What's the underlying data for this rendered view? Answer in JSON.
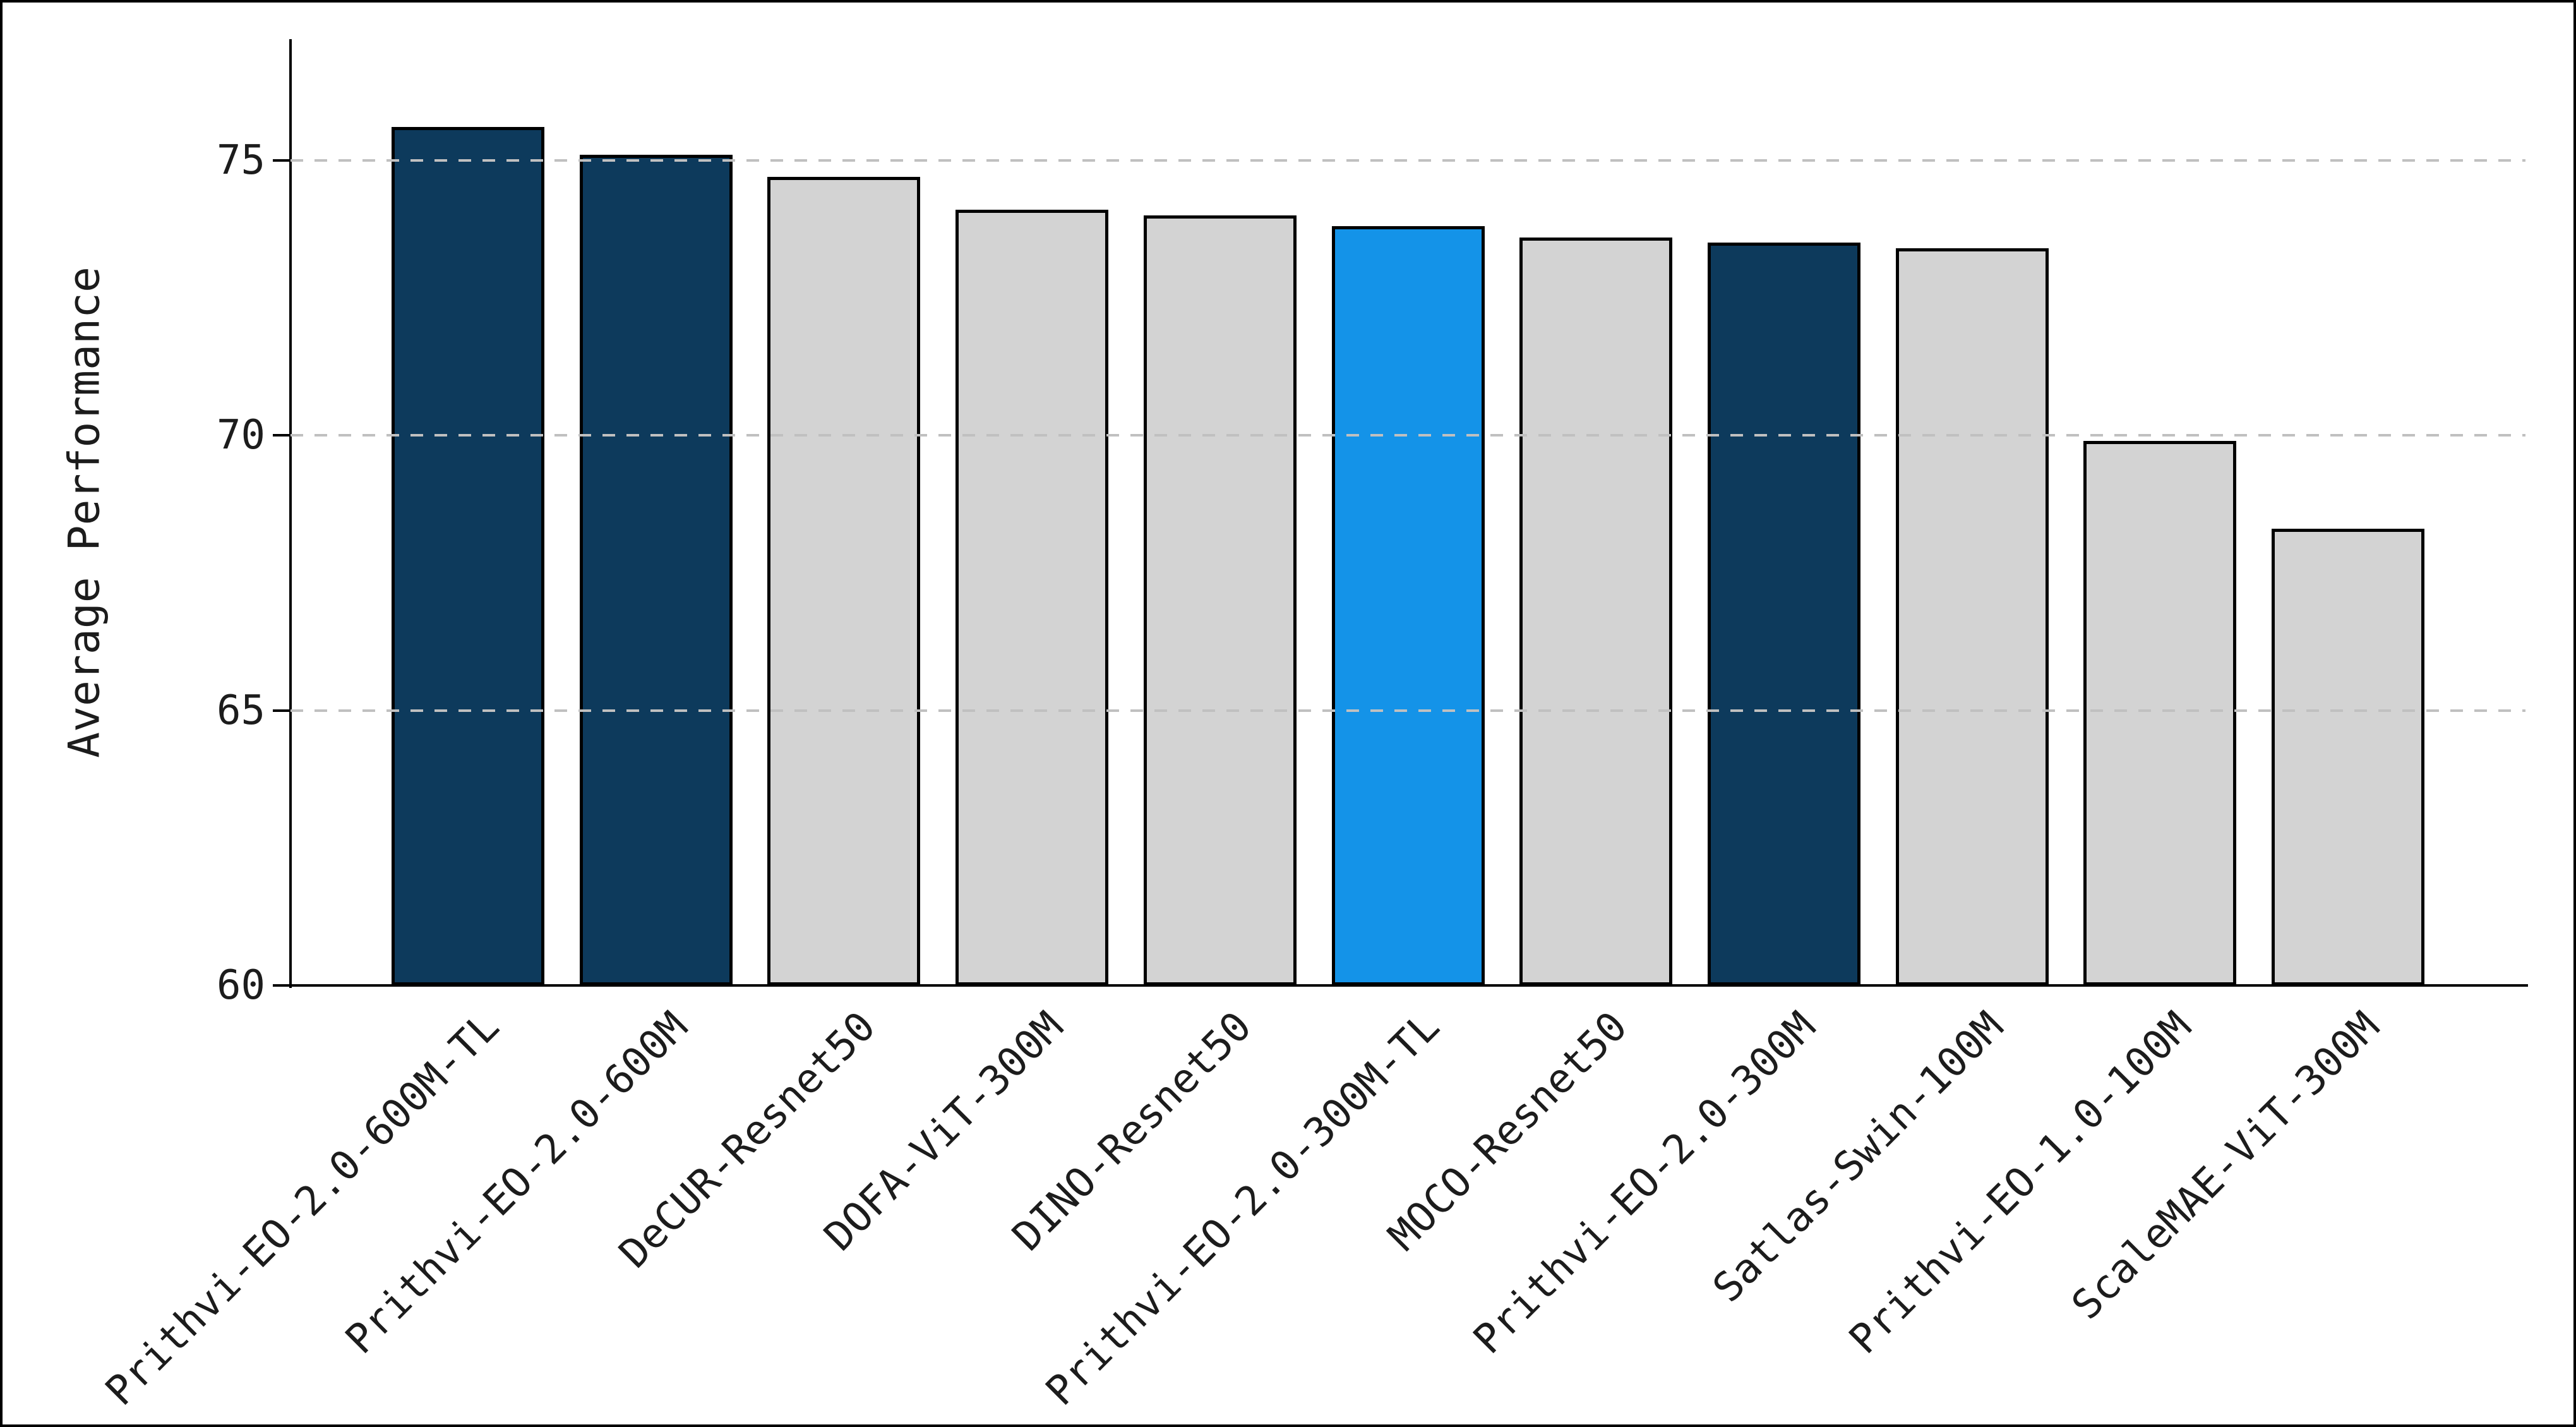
{
  "figure": {
    "background": "#ffffff",
    "border_color": "#000000"
  },
  "chart_data": {
    "type": "bar",
    "title": "",
    "xlabel": "",
    "ylabel": "Average Performance",
    "categories": [
      "Prithvi-EO-2.0-600M-TL",
      "Prithvi-EO-2.0-600M",
      "DeCUR-Resnet50",
      "DOFA-ViT-300M",
      "DINO-Resnet50",
      "Prithvi-EO-2.0-300M-TL",
      "MOCO-Resnet50",
      "Prithvi-EO-2.0-300M",
      "Satlas-Swin-100M",
      "Prithvi-EO-1.0-100M",
      "ScaleMAE-ViT-300M"
    ],
    "values": [
      75.6,
      75.1,
      74.7,
      74.1,
      74.0,
      73.8,
      73.6,
      73.5,
      73.4,
      69.9,
      68.3
    ],
    "bar_colors": [
      "#0d3a5c",
      "#0d3a5c",
      "#d3d3d3",
      "#d3d3d3",
      "#d3d3d3",
      "#1493e8",
      "#d3d3d3",
      "#0d3a5c",
      "#d3d3d3",
      "#d3d3d3",
      "#d3d3d3"
    ],
    "edge_color": "#000000",
    "ylim": [
      60,
      77.2
    ],
    "yticks": [
      60,
      65,
      70,
      75
    ],
    "grid_values": [
      65,
      70,
      75
    ],
    "grid_style": "dashed",
    "grid_color": "#c0c0c0",
    "grid_on_top": true,
    "legend": "none",
    "palette": {
      "prithvi_navy": "#0d3a5c",
      "highlight_blue": "#1493e8",
      "baseline_gray": "#d3d3d3"
    }
  }
}
